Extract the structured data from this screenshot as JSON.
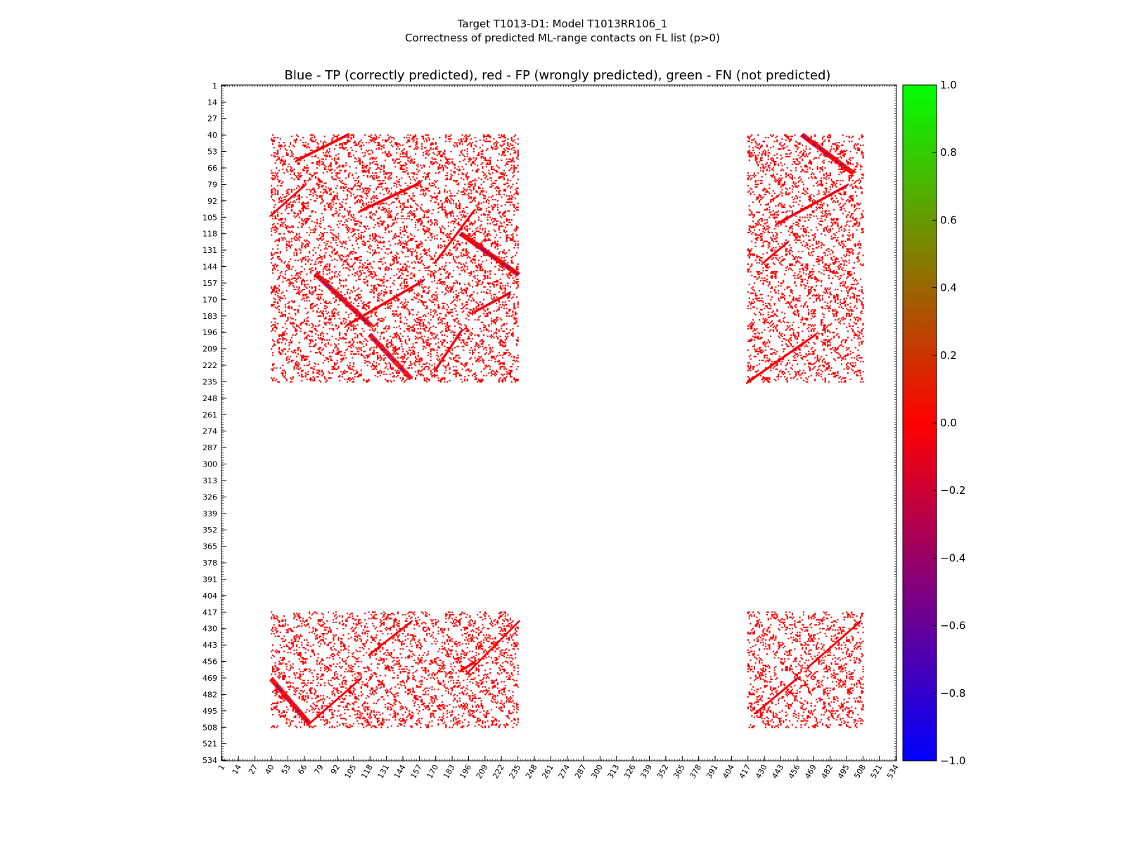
{
  "chart_data": {
    "type": "heatmap",
    "title_line1": "Target T1013-D1: Model T1013RR106_1",
    "title_line2": "Correctness of predicted ML-range contacts on FL list (p>0)",
    "subtitle": "Blue - TP (correctly predicted), red - FP (wrongly predicted), green - FN (not predicted)",
    "axis_range": [
      1,
      534
    ],
    "y_inverted": true,
    "tick_labels": [
      "1",
      "14",
      "27",
      "40",
      "53",
      "66",
      "79",
      "92",
      "105",
      "118",
      "131",
      "144",
      "157",
      "170",
      "183",
      "196",
      "209",
      "222",
      "235",
      "248",
      "261",
      "274",
      "287",
      "300",
      "313",
      "326",
      "339",
      "352",
      "365",
      "378",
      "391",
      "404",
      "417",
      "430",
      "443",
      "456",
      "469",
      "482",
      "495",
      "508",
      "521",
      "534"
    ],
    "colorbar": {
      "range": [
        -1.0,
        1.0
      ],
      "tick_labels": [
        "1.0",
        "0.8",
        "0.6",
        "0.4",
        "0.2",
        "0.0",
        "−0.2",
        "−0.4",
        "−0.6",
        "−0.8",
        "−1.0"
      ],
      "colors": [
        "#0000ff",
        "#ff0000",
        "#00ff00"
      ]
    },
    "legend": {
      "tp_color": "#0000ff",
      "fp_color": "#ff0000",
      "fn_color": "#00ff00"
    },
    "contact_blocks": [
      {
        "x": [
          40,
          235
        ],
        "y": [
          40,
          235
        ]
      },
      {
        "x": [
          417,
          508
        ],
        "y": [
          40,
          235
        ]
      },
      {
        "x": [
          40,
          235
        ],
        "y": [
          417,
          508
        ]
      },
      {
        "x": [
          417,
          508
        ],
        "y": [
          417,
          508
        ]
      }
    ],
    "diagonal_bands": [
      {
        "x": [
          60,
          100
        ],
        "y": [
          60,
          40
        ]
      },
      {
        "x": [
          40,
          66
        ],
        "y": [
          103,
          80
        ]
      },
      {
        "x": [
          110,
          157
        ],
        "y": [
          100,
          78
        ]
      },
      {
        "x": [
          170,
          200
        ],
        "y": [
          140,
          100
        ]
      },
      {
        "x": [
          100,
          160
        ],
        "y": [
          190,
          155
        ]
      },
      {
        "x": [
          75,
          118
        ],
        "y": [
          150,
          190
        ]
      },
      {
        "x": [
          190,
          235
        ],
        "y": [
          118,
          150
        ]
      },
      {
        "x": [
          118,
          150
        ],
        "y": [
          198,
          232
        ]
      },
      {
        "x": [
          170,
          190
        ],
        "y": [
          225,
          195
        ]
      },
      {
        "x": [
          200,
          228
        ],
        "y": [
          180,
          165
        ]
      },
      {
        "x": [
          460,
          500
        ],
        "y": [
          40,
          70
        ]
      },
      {
        "x": [
          440,
          495
        ],
        "y": [
          110,
          80
        ]
      },
      {
        "x": [
          430,
          448
        ],
        "y": [
          140,
          125
        ]
      },
      {
        "x": [
          417,
          470
        ],
        "y": [
          235,
          198
        ]
      },
      {
        "x": [
          40,
          70
        ],
        "y": [
          470,
          505
        ]
      },
      {
        "x": [
          70,
          110
        ],
        "y": [
          505,
          470
        ]
      },
      {
        "x": [
          118,
          150
        ],
        "y": [
          450,
          425
        ]
      },
      {
        "x": [
          195,
          235
        ],
        "y": [
          465,
          425
        ]
      },
      {
        "x": [
          465,
          505
        ],
        "y": [
          460,
          425
        ]
      },
      {
        "x": [
          425,
          455
        ],
        "y": [
          495,
          470
        ]
      },
      {
        "x": [
          190,
          200
        ],
        "y": [
          463,
          457
        ]
      }
    ]
  }
}
